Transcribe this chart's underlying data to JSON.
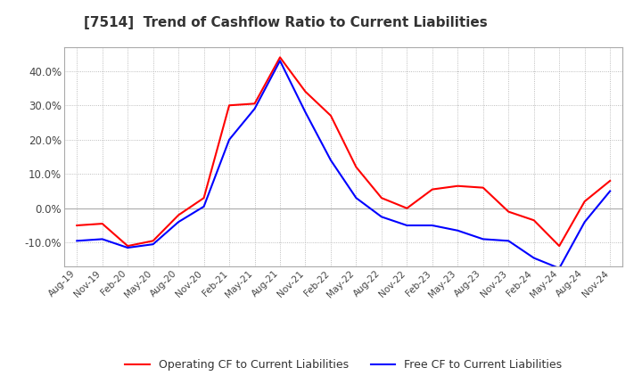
{
  "title": "[7514]  Trend of Cashflow Ratio to Current Liabilities",
  "title_fontsize": 11,
  "background_color": "#ffffff",
  "plot_bg_color": "#ffffff",
  "grid_color": "#aaaaaa",
  "x_labels": [
    "Aug-19",
    "Nov-19",
    "Feb-20",
    "May-20",
    "Aug-20",
    "Nov-20",
    "Feb-21",
    "May-21",
    "Aug-21",
    "Nov-21",
    "Feb-22",
    "May-22",
    "Aug-22",
    "Nov-22",
    "Feb-23",
    "May-23",
    "Aug-23",
    "Nov-23",
    "Feb-24",
    "May-24",
    "Aug-24",
    "Nov-24"
  ],
  "operating_cf": [
    -5.0,
    -4.5,
    -11.0,
    -9.5,
    -2.0,
    3.0,
    30.0,
    30.5,
    44.0,
    34.0,
    27.0,
    12.0,
    3.0,
    0.0,
    5.5,
    6.5,
    6.0,
    -1.0,
    -3.5,
    -11.0,
    2.0,
    8.0
  ],
  "free_cf": [
    -9.5,
    -9.0,
    -11.5,
    -10.5,
    -4.0,
    0.5,
    20.0,
    29.0,
    43.0,
    28.0,
    14.0,
    3.0,
    -2.5,
    -5.0,
    -5.0,
    -6.5,
    -9.0,
    -9.5,
    -14.5,
    -17.5,
    -4.0,
    5.0
  ],
  "operating_color": "#ff0000",
  "free_color": "#0000ff",
  "ylim": [
    -17,
    47
  ],
  "yticks": [
    -10.0,
    0.0,
    10.0,
    20.0,
    30.0,
    40.0
  ],
  "legend_op": "Operating CF to Current Liabilities",
  "legend_free": "Free CF to Current Liabilities"
}
